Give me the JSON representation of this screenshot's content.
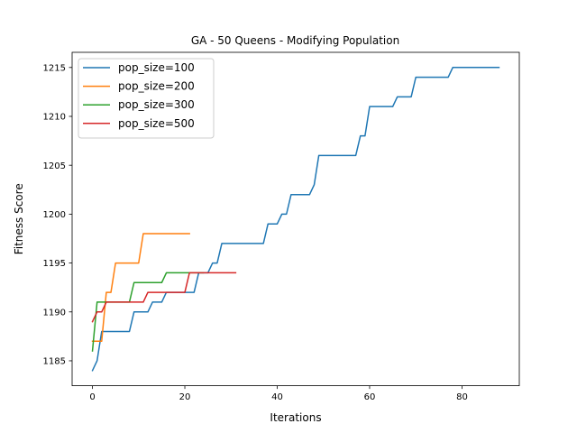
{
  "chart_data": {
    "type": "line",
    "title": "GA - 50 Queens - Modifying Population",
    "xlabel": "Iterations",
    "ylabel": "Fitness Score",
    "xlim": [
      -4.4,
      92.4
    ],
    "ylim": [
      1182.45,
      1216.55
    ],
    "xticks": [
      0,
      20,
      40,
      60,
      80
    ],
    "yticks": [
      1185,
      1190,
      1195,
      1200,
      1205,
      1210,
      1215
    ],
    "grid": false,
    "legend_position": "top-left",
    "series": [
      {
        "name": "pop_size=100",
        "color": "#1f77b4",
        "x": [
          0,
          1,
          2,
          3,
          4,
          5,
          6,
          7,
          8,
          9,
          10,
          11,
          12,
          13,
          14,
          15,
          16,
          17,
          18,
          19,
          20,
          21,
          22,
          23,
          24,
          25,
          26,
          27,
          28,
          29,
          30,
          31,
          32,
          33,
          34,
          35,
          36,
          37,
          38,
          39,
          40,
          41,
          42,
          43,
          44,
          45,
          46,
          47,
          48,
          49,
          50,
          51,
          52,
          53,
          54,
          55,
          56,
          57,
          58,
          59,
          60,
          61,
          62,
          63,
          64,
          65,
          66,
          67,
          68,
          69,
          70,
          71,
          72,
          73,
          74,
          75,
          76,
          77,
          78,
          79,
          80,
          81,
          82,
          83,
          84,
          85,
          86,
          87,
          88
        ],
        "y": [
          1184,
          1185,
          1188,
          1188,
          1188,
          1188,
          1188,
          1188,
          1188,
          1190,
          1190,
          1190,
          1190,
          1191,
          1191,
          1191,
          1192,
          1192,
          1192,
          1192,
          1192,
          1192,
          1192,
          1194,
          1194,
          1194,
          1195,
          1195,
          1197,
          1197,
          1197,
          1197,
          1197,
          1197,
          1197,
          1197,
          1197,
          1197,
          1199,
          1199,
          1199,
          1200,
          1200,
          1202,
          1202,
          1202,
          1202,
          1202,
          1203,
          1206,
          1206,
          1206,
          1206,
          1206,
          1206,
          1206,
          1206,
          1206,
          1208,
          1208,
          1211,
          1211,
          1211,
          1211,
          1211,
          1211,
          1212,
          1212,
          1212,
          1212,
          1214,
          1214,
          1214,
          1214,
          1214,
          1214,
          1214,
          1214,
          1215,
          1215,
          1215,
          1215,
          1215,
          1215,
          1215,
          1215,
          1215,
          1215,
          1215
        ]
      },
      {
        "name": "pop_size=200",
        "color": "#ff7f0e",
        "x": [
          0,
          1,
          2,
          3,
          4,
          5,
          6,
          7,
          8,
          9,
          10,
          11,
          12,
          13,
          14,
          15,
          16,
          17,
          18,
          19,
          20,
          21
        ],
        "y": [
          1187,
          1187,
          1187,
          1192,
          1192,
          1195,
          1195,
          1195,
          1195,
          1195,
          1195,
          1198,
          1198,
          1198,
          1198,
          1198,
          1198,
          1198,
          1198,
          1198,
          1198,
          1198
        ]
      },
      {
        "name": "pop_size=300",
        "color": "#2ca02c",
        "x": [
          0,
          1,
          2,
          3,
          4,
          5,
          6,
          7,
          8,
          9,
          10,
          11,
          12,
          13,
          14,
          15,
          16,
          17,
          18,
          19,
          20,
          21,
          22,
          23,
          24
        ],
        "y": [
          1186,
          1191,
          1191,
          1191,
          1191,
          1191,
          1191,
          1191,
          1191,
          1193,
          1193,
          1193,
          1193,
          1193,
          1193,
          1193,
          1194,
          1194,
          1194,
          1194,
          1194,
          1194,
          1194,
          1194,
          1194
        ]
      },
      {
        "name": "pop_size=500",
        "color": "#d62728",
        "x": [
          0,
          1,
          2,
          3,
          4,
          5,
          6,
          7,
          8,
          9,
          10,
          11,
          12,
          13,
          14,
          15,
          16,
          17,
          18,
          19,
          20,
          21,
          22,
          23,
          24,
          25,
          26,
          27,
          28,
          29,
          30,
          31
        ],
        "y": [
          1189,
          1190,
          1190,
          1191,
          1191,
          1191,
          1191,
          1191,
          1191,
          1191,
          1191,
          1191,
          1192,
          1192,
          1192,
          1192,
          1192,
          1192,
          1192,
          1192,
          1192,
          1194,
          1194,
          1194,
          1194,
          1194,
          1194,
          1194,
          1194,
          1194,
          1194,
          1194
        ]
      }
    ]
  }
}
